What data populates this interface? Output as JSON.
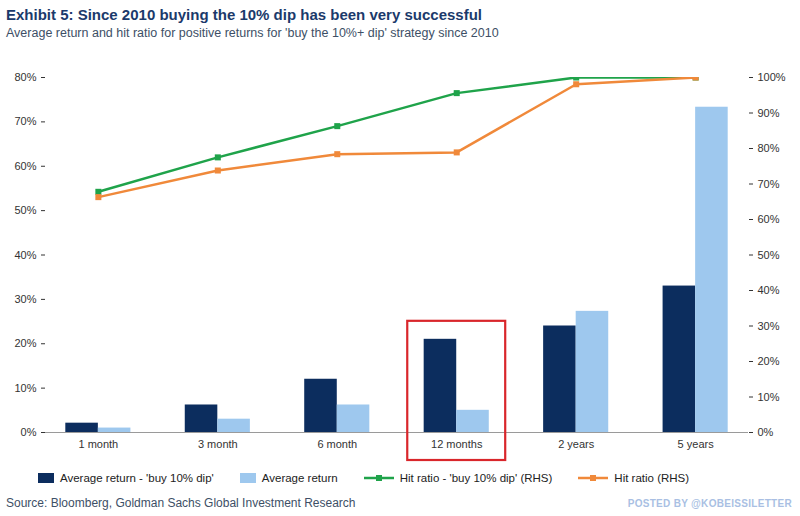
{
  "chart_data": {
    "type": "bar",
    "title": "Exhibit 5: Since 2010 buying the 10% dip has been very successful",
    "subtitle": "Average return and hit ratio for positive returns for 'buy the 10%+ dip' strategy since 2010",
    "source": "Source: Bloomberg, Goldman Sachs Global Investment Research",
    "annotations": [
      "POSTED BY @KOBEISSILETTER"
    ],
    "categories": [
      "1 month",
      "3 month",
      "6 month",
      "12 months",
      "2 years",
      "5 years"
    ],
    "series": [
      {
        "name": "Average return - 'buy 10% dip'",
        "type": "bar",
        "color": "#0c2d5e",
        "values": [
          2.1,
          6.2,
          12,
          21,
          24,
          33
        ]
      },
      {
        "name": "Average return",
        "type": "bar",
        "color": "#9ec8ee",
        "values": [
          1,
          3,
          6.2,
          5,
          27.3,
          73.3
        ]
      },
      {
        "name": "Hit ratio - 'buy 10% dip' (RHS)",
        "type": "line",
        "axis": "y2",
        "color": "#1fa34a",
        "marker": "square",
        "values": [
          67.8,
          77.5,
          86.3,
          95.6,
          100,
          100
        ]
      },
      {
        "name": "Hit ratio (RHS)",
        "type": "line",
        "axis": "y2",
        "color": "#f0893a",
        "marker": "square",
        "values": [
          66.3,
          73.8,
          78.4,
          78.9,
          98.1,
          100
        ]
      }
    ],
    "ylim": [
      0,
      80
    ],
    "yticks": [
      {
        "value": 0,
        "label": "0%"
      },
      {
        "value": 10,
        "label": "10%"
      },
      {
        "value": 20,
        "label": "20%"
      },
      {
        "value": 30,
        "label": "30%"
      },
      {
        "value": 40,
        "label": "40%"
      },
      {
        "value": 50,
        "label": "50%"
      },
      {
        "value": 60,
        "label": "60%"
      },
      {
        "value": 70,
        "label": "70%"
      },
      {
        "value": 80,
        "label": "80%"
      }
    ],
    "y2lim": [
      0,
      100
    ],
    "y2ticks": [
      {
        "value": 0,
        "label": "0%"
      },
      {
        "value": 10,
        "label": "10%"
      },
      {
        "value": 20,
        "label": "20%"
      },
      {
        "value": 30,
        "label": "30%"
      },
      {
        "value": 40,
        "label": "40%"
      },
      {
        "value": 50,
        "label": "50%"
      },
      {
        "value": 60,
        "label": "60%"
      },
      {
        "value": 70,
        "label": "70%"
      },
      {
        "value": 80,
        "label": "80%"
      },
      {
        "value": 90,
        "label": "90%"
      },
      {
        "value": 100,
        "label": "100%"
      }
    ],
    "grid": false,
    "legend": "bottom"
  }
}
